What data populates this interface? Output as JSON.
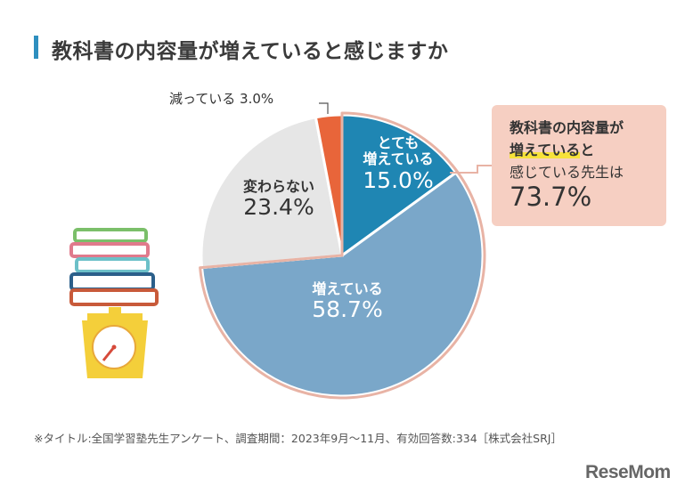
{
  "title": "教科書の内容量が増えていると感じますか",
  "chart_data": {
    "type": "pie",
    "title": "教科書の内容量が増えていると感じますか",
    "slices": [
      {
        "label": "とても増えている",
        "value": 15.0,
        "value_text": "15.0%",
        "color": "#1f86b3"
      },
      {
        "label": "増えている",
        "value": 58.7,
        "value_text": "58.7%",
        "color": "#7aa7c9"
      },
      {
        "label": "変わらない",
        "value": 23.4,
        "value_text": "23.4%",
        "color": "#e6e6e6"
      },
      {
        "label": "減っている",
        "value": 3.0,
        "value_text": "3.0%",
        "color": "#e8653a"
      }
    ],
    "start": "12 o'clock, clockwise"
  },
  "labels": {
    "totemo_line1": "とても",
    "totemo_line2": "増えている",
    "totemo_pct": "15.0%",
    "fueteiru": "増えている",
    "fueteiru_pct": "58.7%",
    "kawaranai": "変わらない",
    "kawaranai_pct": "23.4%",
    "hetteiru": "減っている",
    "hetteiru_pct": "3.0%"
  },
  "callout": {
    "line1": "教科書の内容量が",
    "line2_highlight": "増えている",
    "line2_rest": "と",
    "line3": "感じている先生は",
    "value": "73.7%"
  },
  "footnote": "※タイトル:全国学習塾先生アンケート、調査期間：2023年9月～11月、有効回答数:334［株式会社SRJ］",
  "brand": "ReseMom",
  "colors": {
    "accent": "#2e8fbf",
    "callout_bg": "#f6cfc2",
    "highlight": "#f7e23a"
  }
}
